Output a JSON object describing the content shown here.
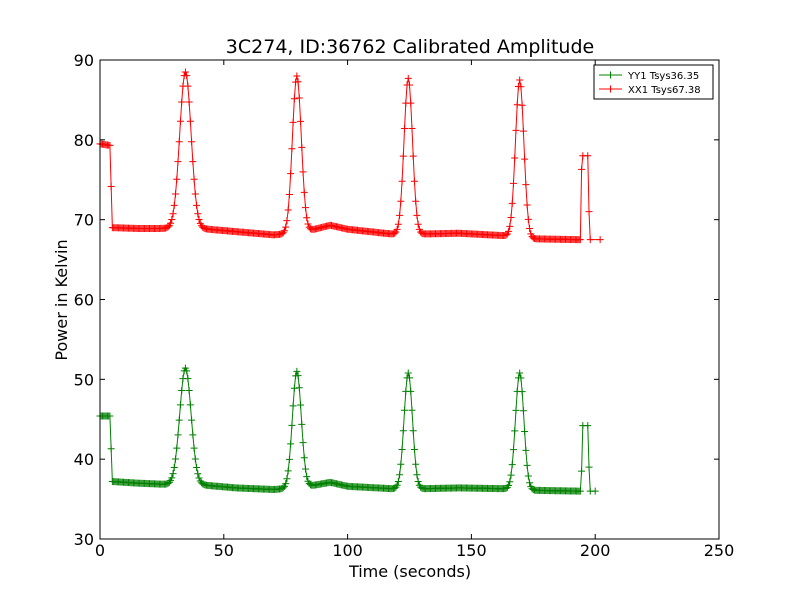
{
  "chart_data": {
    "type": "line",
    "title": "3C274, ID:36762 Calibrated Amplitude",
    "xlabel": "Time (seconds)",
    "ylabel": "Power in Kelvin",
    "xlim": [
      0,
      250
    ],
    "ylim": [
      30,
      90
    ],
    "xticks": [
      0,
      50,
      100,
      150,
      200,
      250
    ],
    "yticks": [
      30,
      40,
      50,
      60,
      70,
      80,
      90
    ],
    "grid": false,
    "legend_position": "top-right",
    "marker": "+",
    "series": [
      {
        "name": "YY1 Tsys36.35",
        "color": "#008000",
        "baseline": [
          [
            0,
            45.4
          ],
          [
            4,
            45.4
          ],
          [
            5,
            37.2
          ],
          [
            15,
            37.0
          ],
          [
            30,
            36.8
          ],
          [
            40,
            36.8
          ],
          [
            55,
            36.4
          ],
          [
            70,
            36.2
          ],
          [
            75,
            36.3
          ],
          [
            84,
            36.6
          ],
          [
            93,
            37.1
          ],
          [
            100,
            36.6
          ],
          [
            118,
            36.3
          ],
          [
            130,
            36.3
          ],
          [
            145,
            36.4
          ],
          [
            163,
            36.3
          ],
          [
            175,
            36.1
          ],
          [
            193,
            36.0
          ]
        ],
        "peaks": [
          [
            34.5,
            51.4,
            2.3
          ],
          [
            79.5,
            51.0,
            1.8
          ],
          [
            124.5,
            50.8,
            1.7
          ],
          [
            169.5,
            50.8,
            1.7
          ]
        ],
        "tail": [
          [
            194,
            36.0
          ],
          [
            194.5,
            38.5
          ],
          [
            195,
            44.2
          ],
          [
            197,
            44.2
          ],
          [
            197.5,
            39.0
          ],
          [
            198,
            36.0
          ],
          [
            200,
            36.0
          ]
        ]
      },
      {
        "name": "XX1 Tsys67.38",
        "color": "#ff0000",
        "baseline": [
          [
            0,
            79.5
          ],
          [
            4,
            79.3
          ],
          [
            5,
            69.0
          ],
          [
            15,
            68.9
          ],
          [
            30,
            68.9
          ],
          [
            40,
            68.9
          ],
          [
            55,
            68.5
          ],
          [
            70,
            68.1
          ],
          [
            75,
            68.2
          ],
          [
            84,
            68.6
          ],
          [
            93,
            69.3
          ],
          [
            100,
            68.8
          ],
          [
            118,
            68.2
          ],
          [
            130,
            68.2
          ],
          [
            145,
            68.3
          ],
          [
            163,
            68.0
          ],
          [
            175,
            67.6
          ],
          [
            193,
            67.5
          ]
        ],
        "peaks": [
          [
            34.5,
            88.5,
            2.3
          ],
          [
            79.5,
            88.0,
            1.8
          ],
          [
            124.5,
            87.7,
            1.7
          ],
          [
            169.5,
            87.5,
            1.7
          ]
        ],
        "tail": [
          [
            194,
            67.5
          ],
          [
            194.5,
            76.3
          ],
          [
            195,
            78.0
          ],
          [
            197,
            78.0
          ],
          [
            197.5,
            71.0
          ],
          [
            198,
            67.5
          ],
          [
            202,
            67.5
          ]
        ]
      }
    ]
  }
}
